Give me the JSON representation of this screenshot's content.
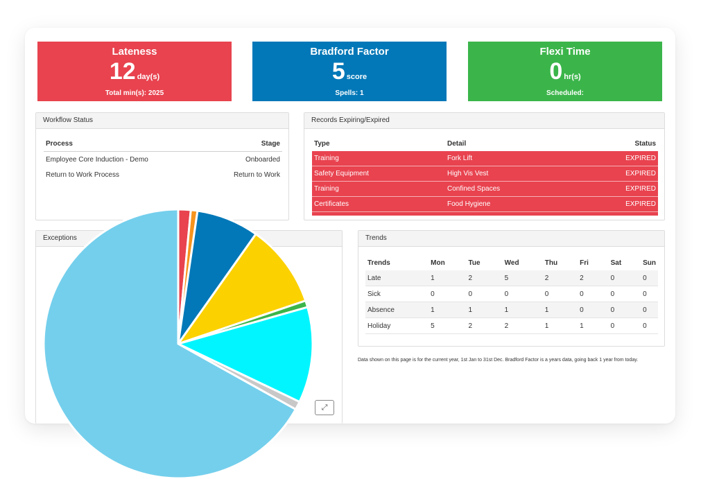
{
  "kpis": {
    "lateness": {
      "title": "Lateness",
      "value": "12",
      "unit": "day(s)",
      "sub": "Total min(s): 2025",
      "color": "#e8434f"
    },
    "bradford": {
      "title": "Bradford Factor",
      "value": "5",
      "unit": "score",
      "sub": "Spells: 1",
      "color": "#0278b8"
    },
    "flexi": {
      "title": "Flexi Time",
      "value": "0",
      "unit": "hr(s)",
      "sub": "Scheduled:",
      "color": "#3bb54a"
    }
  },
  "workflow": {
    "title": "Workflow Status",
    "headers": {
      "process": "Process",
      "stage": "Stage"
    },
    "rows": [
      {
        "process": "Employee Core Induction - Demo",
        "stage": "Onboarded"
      },
      {
        "process": "Return to Work Process",
        "stage": "Return to Work"
      }
    ]
  },
  "records": {
    "title": "Records Expiring/Expired",
    "headers": {
      "type": "Type",
      "detail": "Detail",
      "status": "Status"
    },
    "rows": [
      {
        "type": "Training",
        "detail": "Fork Lift",
        "status": "EXPIRED"
      },
      {
        "type": "Safety Equipment",
        "detail": "High Vis Vest",
        "status": "EXPIRED"
      },
      {
        "type": "Training",
        "detail": "Confined Spaces",
        "status": "EXPIRED"
      },
      {
        "type": "Certificates",
        "detail": "Food Hygiene",
        "status": "EXPIRED"
      }
    ]
  },
  "exceptions": {
    "title": "Exceptions",
    "expand_icon": "expand-icon"
  },
  "trends": {
    "title": "Trends",
    "headers": [
      "Trends",
      "Mon",
      "Tue",
      "Wed",
      "Thu",
      "Fri",
      "Sat",
      "Sun"
    ],
    "rows": [
      [
        "Late",
        "1",
        "2",
        "5",
        "2",
        "2",
        "0",
        "0"
      ],
      [
        "Sick",
        "0",
        "0",
        "0",
        "0",
        "0",
        "0",
        "0"
      ],
      [
        "Absence",
        "1",
        "1",
        "1",
        "1",
        "0",
        "0",
        "0"
      ],
      [
        "Holiday",
        "5",
        "2",
        "2",
        "1",
        "1",
        "0",
        "0"
      ]
    ]
  },
  "note": "Data shown on this page is for the current year, 1st Jan to 31st Dec. Bradford Factor is a years data, going back 1 year from today.",
  "chart_data": {
    "type": "pie",
    "title": "",
    "slices": [
      {
        "value": 1.5,
        "color": "#e8434f"
      },
      {
        "value": 0.8,
        "color": "#f7941d"
      },
      {
        "value": 7.5,
        "color": "#0278b8"
      },
      {
        "value": 10.0,
        "color": "#fcd100"
      },
      {
        "value": 0.8,
        "color": "#3bb54a"
      },
      {
        "value": 11.5,
        "color": "#00f5ff"
      },
      {
        "value": 1.0,
        "color": "#c8c8c8"
      },
      {
        "value": 66.9,
        "color": "#74cfec"
      }
    ]
  }
}
